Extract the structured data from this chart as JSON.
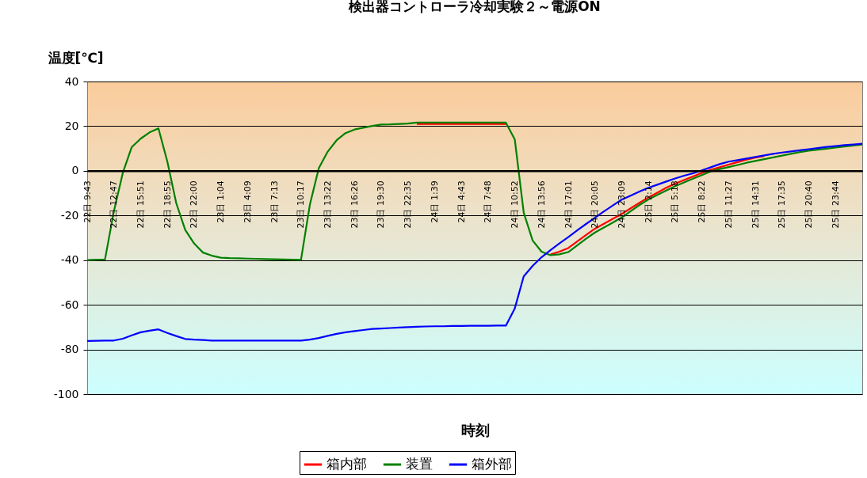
{
  "chart_data": {
    "type": "line",
    "title": "検出器コントローラ冷却実験２～電源ON",
    "xlabel": "時刻",
    "ylabel": "温度[℃]",
    "categories": [
      "22日 9:43",
      null,
      null,
      "22日 12:47",
      null,
      null,
      "22日 15:51",
      null,
      null,
      "22日 18:55",
      null,
      null,
      "22日 22:00",
      null,
      null,
      "23日 1:04",
      null,
      null,
      "23日 4:09",
      null,
      null,
      "23日 7:13",
      null,
      null,
      "23日 10:17",
      null,
      null,
      "23日 13:22",
      null,
      null,
      "23日 16:26",
      null,
      null,
      "23日 19:30",
      null,
      null,
      "23日 22:35",
      null,
      null,
      "24日 1:39",
      null,
      null,
      "24日 4:43",
      null,
      null,
      "24日 7:48",
      null,
      null,
      "24日 10:52",
      null,
      null,
      "24日 13:56",
      null,
      null,
      "24日 17:01",
      null,
      null,
      "24日 20:05",
      null,
      null,
      "24日 23:09",
      null,
      null,
      "25日 2:14",
      null,
      null,
      "25日 5:18",
      null,
      null,
      "25日 8:22",
      null,
      null,
      "25日 11:27",
      null,
      null,
      "25日 14:31",
      null,
      null,
      "25日 17:35",
      null,
      null,
      "25日 20:40",
      null,
      null,
      "25日 23:44",
      null,
      null,
      null
    ],
    "ylim": [
      -100,
      40
    ],
    "yticks": [
      -100,
      -80,
      -60,
      -40,
      -20,
      0,
      20,
      40
    ],
    "grid": "y",
    "legend": "bottom",
    "marker": "none",
    "line_style": "solid",
    "series": [
      {
        "name": "箱内部",
        "color": "#ff0000",
        "values": [
          null,
          null,
          null,
          null,
          null,
          null,
          null,
          null,
          null,
          null,
          null,
          null,
          null,
          null,
          null,
          null,
          null,
          null,
          null,
          null,
          null,
          null,
          null,
          null,
          null,
          null,
          null,
          null,
          null,
          null,
          null,
          null,
          null,
          null,
          null,
          null,
          null,
          21.0,
          21.0,
          21.0,
          21.0,
          21.0,
          21.0,
          21.0,
          21.0,
          21.0,
          21.0,
          21.0,
          null,
          null,
          null,
          null,
          -37.5,
          -36.2,
          -34.6,
          -31.6,
          -28.7,
          -25.9,
          -23.7,
          -21.5,
          -19.3,
          -16.8,
          -14.3,
          -11.9,
          -9.8,
          -7.6,
          -5.7,
          -4.1,
          -2.5,
          -0.9,
          0.5,
          1.6,
          2.8,
          3.9,
          5.0,
          5.9,
          6.6,
          null,
          null,
          null,
          null,
          null,
          null,
          null,
          null,
          null,
          null,
          null
        ]
      },
      {
        "name": "装置",
        "color": "#008000",
        "values": [
          -40,
          -39.8,
          -39.7,
          -18.1,
          -0.9,
          10.6,
          14.4,
          17.2,
          19.0,
          4.1,
          -14.5,
          -26.4,
          -32.5,
          -36.6,
          -38,
          -38.9,
          -39.1,
          -39.2,
          -39.3,
          -39.4,
          -39.5,
          -39.6,
          -39.7,
          -39.8,
          -39.9,
          -15.1,
          1.2,
          8.6,
          13.7,
          16.9,
          18.5,
          19.3,
          20.1,
          20.7,
          20.8,
          21.0,
          21.2,
          21.6,
          21.6,
          21.6,
          21.6,
          21.6,
          21.6,
          21.6,
          21.6,
          21.6,
          21.6,
          21.6,
          14.0,
          -18.7,
          -31.2,
          -36.2,
          -37.8,
          -37.4,
          -36.4,
          -33.4,
          -30.4,
          -27.6,
          -25.4,
          -23.2,
          -20.9,
          -18.1,
          -15.3,
          -12.8,
          -10.8,
          -8.8,
          -6.9,
          -5.2,
          -3.5,
          -1.9,
          -0.2,
          0.8,
          1.7,
          2.6,
          3.6,
          4.4,
          5.2,
          6.0,
          6.8,
          7.6,
          8.4,
          9.0,
          9.5,
          9.9,
          10.4,
          10.9,
          11.3,
          11.8
        ]
      },
      {
        "name": "箱外部",
        "color": "#0000ff",
        "values": [
          -76.2,
          -76.1,
          -76.0,
          -76.0,
          -75.2,
          -73.7,
          -72.3,
          -71.6,
          -71.0,
          -72.6,
          -74.0,
          -75.3,
          -75.6,
          -75.8,
          -76,
          -76,
          -76,
          -76,
          -76,
          -76,
          -76,
          -76,
          -76,
          -76,
          -76,
          -75.6,
          -74.9,
          -73.9,
          -73.0,
          -72.3,
          -71.8,
          -71.3,
          -70.8,
          -70.6,
          -70.4,
          -70.2,
          -70.0,
          -69.8,
          -69.7,
          -69.6,
          -69.6,
          -69.5,
          -69.5,
          -69.4,
          -69.4,
          -69.4,
          -69.3,
          -69.3,
          -61.6,
          -47.3,
          -42.6,
          -38.7,
          -35.5,
          -32.5,
          -29.7,
          -26.7,
          -23.8,
          -21.0,
          -18.2,
          -15.5,
          -12.9,
          -11.1,
          -9.3,
          -7.6,
          -6.2,
          -4.8,
          -3.4,
          -2.2,
          -1.1,
          0.2,
          1.6,
          3.0,
          4.1,
          4.8,
          5.5,
          6.2,
          6.9,
          7.6,
          8.2,
          8.7,
          9.2,
          9.7,
          10.2,
          10.7,
          11.1,
          11.5,
          11.8,
          12.1
        ]
      }
    ]
  }
}
